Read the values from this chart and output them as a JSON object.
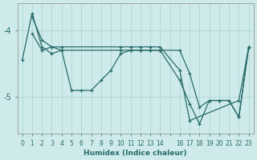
{
  "xlabel": "Humidex (Indice chaleur)",
  "ylabel": "",
  "bg_color": "#ceeaea",
  "line_color": "#2a6b6b",
  "grid_color": "#a8d4d4",
  "xlim": [
    -0.5,
    23.5
  ],
  "ylim": [
    -5.55,
    -3.6
  ],
  "yticks": [
    -5.0,
    -4.0
  ],
  "xtick_labels": [
    "0",
    "1",
    "2",
    "3",
    "4",
    "5",
    "6",
    "7",
    "8",
    "9",
    "10",
    "11",
    "12",
    "13",
    "14",
    "",
    "16",
    "17",
    "18",
    "19",
    "20",
    "21",
    "22",
    "23"
  ],
  "xtick_positions": [
    0,
    1,
    2,
    3,
    4,
    5,
    6,
    7,
    8,
    9,
    10,
    11,
    12,
    13,
    14,
    15,
    16,
    17,
    18,
    19,
    20,
    21,
    22,
    23
  ],
  "series": [
    {
      "x": [
        0,
        1,
        2,
        3,
        4,
        5,
        6,
        7,
        8,
        9,
        10,
        11,
        12,
        13,
        14,
        16,
        17,
        18,
        19,
        20,
        21,
        22,
        23
      ],
      "y": [
        -4.45,
        -3.75,
        -4.25,
        -4.35,
        -4.3,
        -4.9,
        -4.9,
        -4.9,
        -4.75,
        -4.6,
        -4.35,
        -4.3,
        -4.3,
        -4.3,
        -4.3,
        -4.3,
        -4.65,
        -5.15,
        -5.05,
        -5.05,
        -5.05,
        -5.3,
        -4.25
      ]
    },
    {
      "x": [
        1,
        2,
        3,
        4,
        10,
        11,
        12,
        13,
        14,
        16,
        17,
        22,
        23
      ],
      "y": [
        -3.8,
        -4.15,
        -4.25,
        -4.25,
        -4.25,
        -4.25,
        -4.25,
        -4.25,
        -4.25,
        -4.6,
        -5.35,
        -5.05,
        -4.25
      ]
    },
    {
      "x": [
        1,
        2,
        3,
        4,
        10,
        11,
        12,
        13,
        14,
        16,
        17,
        18,
        19,
        20,
        21,
        22,
        23
      ],
      "y": [
        -4.05,
        -4.3,
        -4.25,
        -4.3,
        -4.3,
        -4.3,
        -4.3,
        -4.3,
        -4.3,
        -4.75,
        -5.1,
        -5.4,
        -5.05,
        -5.05,
        -5.05,
        -5.3,
        -4.25
      ]
    }
  ]
}
